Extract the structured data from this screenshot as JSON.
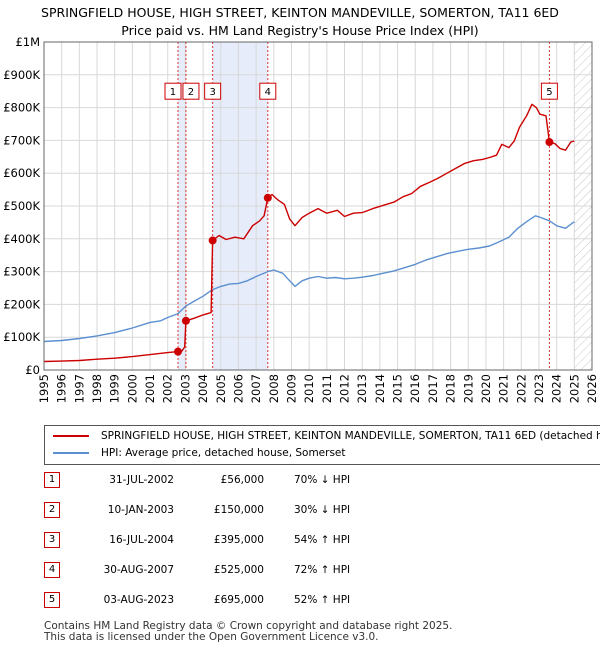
{
  "chart_data": {
    "type": "line",
    "title": "SPRINGFIELD HOUSE, HIGH STREET, KEINTON MANDEVILLE, SOMERTON, TA11 6ED",
    "subtitle": "Price paid vs. HM Land Registry's House Price Index (HPI)",
    "xlim": [
      1995,
      2026
    ],
    "ylim": [
      0,
      1000000
    ],
    "x_ticks": [
      "1995",
      "1996",
      "1997",
      "1998",
      "1999",
      "2000",
      "2001",
      "2002",
      "2003",
      "2004",
      "2005",
      "2006",
      "2007",
      "2008",
      "2009",
      "2010",
      "2011",
      "2012",
      "2013",
      "2014",
      "2015",
      "2016",
      "2017",
      "2018",
      "2019",
      "2020",
      "2021",
      "2022",
      "2023",
      "2024",
      "2025",
      "2026"
    ],
    "y_ticks": [
      {
        "value": 0,
        "label": "£0"
      },
      {
        "value": 100000,
        "label": "£100K"
      },
      {
        "value": 200000,
        "label": "£200K"
      },
      {
        "value": 300000,
        "label": "£300K"
      },
      {
        "value": 400000,
        "label": "£400K"
      },
      {
        "value": 500000,
        "label": "£500K"
      },
      {
        "value": 600000,
        "label": "£600K"
      },
      {
        "value": 700000,
        "label": "£700K"
      },
      {
        "value": 800000,
        "label": "£800K"
      },
      {
        "value": 900000,
        "label": "£900K"
      },
      {
        "value": 1000000,
        "label": "£1M"
      }
    ],
    "colors": {
      "property": "#cc0000",
      "hpi": "#5b8fd0",
      "shade": "#e6ecfa",
      "grid": "#d8d8d8",
      "future_hatch": "#c8c8c8",
      "vline": "#dd3333"
    },
    "shaded_periods": [
      [
        2002.58,
        2003.03
      ],
      [
        2004.54,
        2007.66
      ]
    ],
    "future_from": 2025.0,
    "series": [
      {
        "name": "SPRINGFIELD HOUSE, HIGH STREET, KEINTON MANDEVILLE, SOMERTON, TA11 6ED (detached h",
        "points": [
          [
            1995.0,
            26000
          ],
          [
            1996.0,
            27000
          ],
          [
            1997.0,
            29000
          ],
          [
            1998.0,
            33000
          ],
          [
            1999.0,
            36000
          ],
          [
            2000.0,
            41000
          ],
          [
            2001.0,
            47000
          ],
          [
            2002.0,
            53000
          ],
          [
            2002.58,
            56000
          ],
          [
            2002.8,
            58000
          ],
          [
            2002.96,
            70000
          ],
          [
            2003.03,
            150000
          ],
          [
            2003.5,
            158000
          ],
          [
            2004.0,
            168000
          ],
          [
            2004.45,
            175000
          ],
          [
            2004.54,
            395000
          ],
          [
            2004.9,
            410000
          ],
          [
            2005.3,
            398000
          ],
          [
            2005.8,
            405000
          ],
          [
            2006.3,
            400000
          ],
          [
            2006.8,
            440000
          ],
          [
            2007.2,
            455000
          ],
          [
            2007.45,
            470000
          ],
          [
            2007.66,
            525000
          ],
          [
            2007.9,
            535000
          ],
          [
            2008.2,
            520000
          ],
          [
            2008.6,
            505000
          ],
          [
            2008.9,
            460000
          ],
          [
            2009.2,
            440000
          ],
          [
            2009.6,
            465000
          ],
          [
            2010.0,
            478000
          ],
          [
            2010.5,
            492000
          ],
          [
            2011.0,
            478000
          ],
          [
            2011.6,
            487000
          ],
          [
            2012.0,
            468000
          ],
          [
            2012.5,
            478000
          ],
          [
            2013.0,
            480000
          ],
          [
            2013.6,
            492000
          ],
          [
            2014.2,
            502000
          ],
          [
            2014.8,
            512000
          ],
          [
            2015.3,
            528000
          ],
          [
            2015.8,
            538000
          ],
          [
            2016.3,
            560000
          ],
          [
            2016.8,
            572000
          ],
          [
            2017.3,
            585000
          ],
          [
            2017.8,
            600000
          ],
          [
            2018.3,
            615000
          ],
          [
            2018.8,
            630000
          ],
          [
            2019.3,
            638000
          ],
          [
            2019.8,
            642000
          ],
          [
            2020.2,
            648000
          ],
          [
            2020.6,
            655000
          ],
          [
            2020.9,
            688000
          ],
          [
            2021.3,
            678000
          ],
          [
            2021.6,
            698000
          ],
          [
            2021.9,
            740000
          ],
          [
            2022.3,
            775000
          ],
          [
            2022.6,
            810000
          ],
          [
            2022.85,
            800000
          ],
          [
            2023.05,
            780000
          ],
          [
            2023.4,
            775000
          ],
          [
            2023.59,
            695000
          ],
          [
            2023.9,
            690000
          ],
          [
            2024.2,
            675000
          ],
          [
            2024.5,
            670000
          ],
          [
            2024.8,
            695000
          ],
          [
            2025.0,
            698000
          ]
        ]
      },
      {
        "name": "HPI: Average price, detached house, Somerset",
        "points": [
          [
            1995.0,
            87000
          ],
          [
            1996.0,
            90000
          ],
          [
            1997.0,
            96000
          ],
          [
            1998.0,
            104000
          ],
          [
            1999.0,
            114000
          ],
          [
            2000.0,
            128000
          ],
          [
            2001.0,
            145000
          ],
          [
            2001.6,
            150000
          ],
          [
            2002.0,
            160000
          ],
          [
            2002.58,
            172000
          ],
          [
            2003.03,
            195000
          ],
          [
            2003.5,
            210000
          ],
          [
            2004.0,
            225000
          ],
          [
            2004.54,
            245000
          ],
          [
            2005.0,
            255000
          ],
          [
            2005.5,
            262000
          ],
          [
            2006.0,
            264000
          ],
          [
            2006.5,
            272000
          ],
          [
            2007.0,
            285000
          ],
          [
            2007.66,
            300000
          ],
          [
            2008.0,
            305000
          ],
          [
            2008.5,
            295000
          ],
          [
            2008.9,
            272000
          ],
          [
            2009.2,
            255000
          ],
          [
            2009.6,
            272000
          ],
          [
            2010.0,
            280000
          ],
          [
            2010.5,
            285000
          ],
          [
            2011.0,
            280000
          ],
          [
            2011.5,
            282000
          ],
          [
            2012.0,
            278000
          ],
          [
            2012.5,
            280000
          ],
          [
            2013.0,
            283000
          ],
          [
            2013.6,
            288000
          ],
          [
            2014.2,
            295000
          ],
          [
            2014.8,
            302000
          ],
          [
            2015.4,
            312000
          ],
          [
            2016.0,
            322000
          ],
          [
            2016.6,
            335000
          ],
          [
            2017.2,
            345000
          ],
          [
            2017.8,
            355000
          ],
          [
            2018.4,
            362000
          ],
          [
            2019.0,
            368000
          ],
          [
            2019.6,
            372000
          ],
          [
            2020.2,
            378000
          ],
          [
            2020.8,
            392000
          ],
          [
            2021.3,
            405000
          ],
          [
            2021.8,
            432000
          ],
          [
            2022.3,
            452000
          ],
          [
            2022.8,
            470000
          ],
          [
            2023.1,
            465000
          ],
          [
            2023.59,
            455000
          ],
          [
            2024.0,
            440000
          ],
          [
            2024.5,
            432000
          ],
          [
            2025.0,
            452000
          ]
        ]
      }
    ],
    "sales": [
      {
        "label": "1",
        "x": 2002.58,
        "y": 56000
      },
      {
        "label": "2",
        "x": 2003.03,
        "y": 150000
      },
      {
        "label": "3",
        "x": 2004.54,
        "y": 395000
      },
      {
        "label": "4",
        "x": 2007.66,
        "y": 525000
      },
      {
        "label": "5",
        "x": 2023.59,
        "y": 695000
      }
    ],
    "label_y": 850000
  },
  "table": {
    "rows": [
      {
        "num": "1",
        "date": "31-JUL-2002",
        "price": "£56,000",
        "hpi": "70% ↓ HPI"
      },
      {
        "num": "2",
        "date": "10-JAN-2003",
        "price": "£150,000",
        "hpi": "30% ↓ HPI"
      },
      {
        "num": "3",
        "date": "16-JUL-2004",
        "price": "£395,000",
        "hpi": "54% ↑ HPI"
      },
      {
        "num": "4",
        "date": "30-AUG-2007",
        "price": "£525,000",
        "hpi": "72% ↑ HPI"
      },
      {
        "num": "5",
        "date": "03-AUG-2023",
        "price": "£695,000",
        "hpi": "52% ↑ HPI"
      }
    ]
  },
  "footer": {
    "line1": "Contains HM Land Registry data © Crown copyright and database right 2025.",
    "line2": "This data is licensed under the Open Government Licence v3.0."
  }
}
